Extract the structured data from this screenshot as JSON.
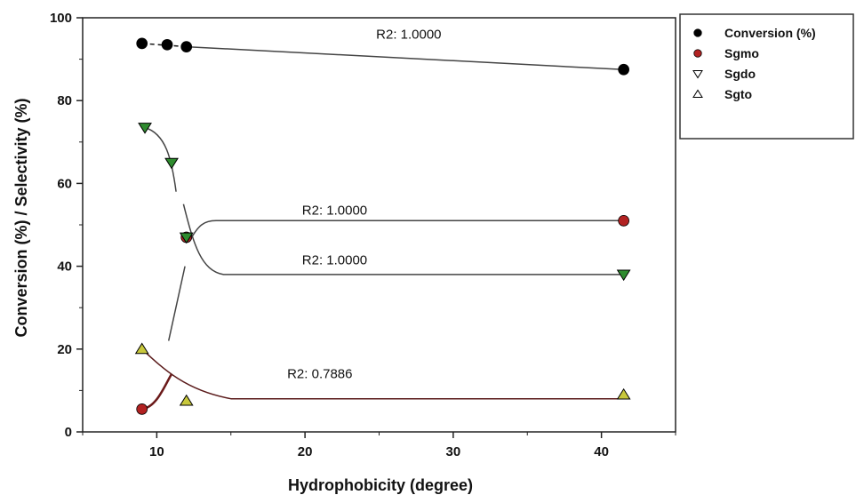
{
  "chart_data": {
    "type": "scatter",
    "xlabel": "Hydrophobicity (degree)",
    "ylabel": "Conversion (%) / Selectivity (%)",
    "xlim": [
      5,
      45
    ],
    "ylim": [
      0,
      100
    ],
    "xticks": [
      10,
      20,
      30,
      40
    ],
    "yticks": [
      0,
      20,
      40,
      60,
      80,
      100
    ],
    "grid": false,
    "legend_position": "right",
    "series": [
      {
        "name": "Conversion (%)",
        "marker": "circle",
        "color": "#000000",
        "x": [
          9,
          10.7,
          12,
          41.5
        ],
        "y": [
          93.8,
          93.5,
          93,
          87.5
        ]
      },
      {
        "name": "Sgmo",
        "marker": "circle",
        "color": "#b22222",
        "x": [
          9,
          12,
          41.5
        ],
        "y": [
          5.5,
          47,
          51
        ]
      },
      {
        "name": "Sgdo",
        "marker": "triangle-down",
        "color": "#2e8b2e",
        "x": [
          9.2,
          11,
          12,
          41.5
        ],
        "y": [
          73.5,
          65,
          47,
          38
        ]
      },
      {
        "name": "Sgto",
        "marker": "triangle-up",
        "color": "#c8c83c",
        "x": [
          9,
          12,
          41.5
        ],
        "y": [
          20,
          7.5,
          9
        ]
      }
    ],
    "annotations": [
      {
        "text": "R2: 1.0000",
        "x": 27,
        "y": 95
      },
      {
        "text": "R2: 1.0000",
        "x": 22,
        "y": 52.5
      },
      {
        "text": "R2: 1.0000",
        "x": 22,
        "y": 40.5
      },
      {
        "text": "R2: 0.7886",
        "x": 21,
        "y": 13
      }
    ]
  }
}
